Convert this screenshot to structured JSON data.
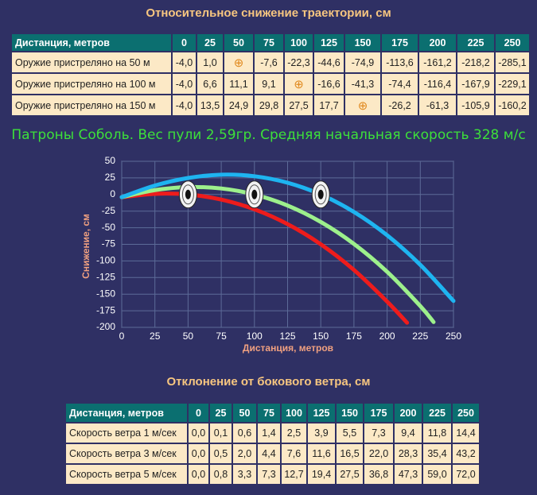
{
  "drop_table": {
    "title": "Относительное снижение траектории, см",
    "header": [
      "Дистанция, метров",
      "0",
      "25",
      "50",
      "75",
      "100",
      "125",
      "150",
      "175",
      "200",
      "225",
      "250"
    ],
    "rows": [
      [
        "Оружие пристреляно на 50 м",
        "-4,0",
        "1,0",
        "⊕",
        "-7,6",
        "-22,3",
        "-44,6",
        "-74,9",
        "-113,6",
        "-161,2",
        "-218,2",
        "-285,1"
      ],
      [
        "Оружие пристреляно на 100 м",
        "-4,0",
        "6,6",
        "11,1",
        "9,1",
        "⊕",
        "-16,6",
        "-41,3",
        "-74,4",
        "-116,4",
        "-167,9",
        "-229,1"
      ],
      [
        "Оружие пристреляно на 150 м",
        "-4,0",
        "13,5",
        "24,9",
        "29,8",
        "27,5",
        "17,7",
        "⊕",
        "-26,2",
        "-61,3",
        "-105,9",
        "-160,2"
      ]
    ]
  },
  "subtitle": "Патроны Соболь. Вес пули 2,59гр. Средняя начальная скорость 328 м/с",
  "chart_data": {
    "type": "line",
    "xlabel": "Дистанция, метров",
    "ylabel": "Снижение, см",
    "xlim": [
      0,
      250
    ],
    "xticks": [
      0,
      25,
      50,
      75,
      100,
      125,
      150,
      175,
      200,
      225,
      250
    ],
    "ylim": [
      -200,
      50
    ],
    "yticks": [
      -200,
      -175,
      -150,
      -125,
      -100,
      -75,
      -50,
      -25,
      0,
      25,
      50
    ],
    "grid": true,
    "series": [
      {
        "color": "#ee1c1c",
        "x": [
          0,
          25,
          50,
          75,
          100,
          125,
          150,
          175,
          200,
          215
        ],
        "values": [
          -4,
          1,
          0,
          -7.6,
          -22.3,
          -44.6,
          -74.9,
          -113.6,
          -161.2,
          -193
        ]
      },
      {
        "color": "#9df08c",
        "x": [
          0,
          25,
          50,
          75,
          100,
          125,
          150,
          175,
          200,
          225,
          235
        ],
        "values": [
          -4,
          6.6,
          11.1,
          9.1,
          0,
          -16.6,
          -41.3,
          -74.4,
          -116.4,
          -167.9,
          -192
        ]
      },
      {
        "color": "#1eb4f0",
        "x": [
          0,
          25,
          50,
          75,
          100,
          125,
          150,
          175,
          200,
          225,
          250
        ],
        "values": [
          -4,
          13.5,
          24.9,
          29.8,
          27.5,
          17.7,
          0,
          -26.2,
          -61.3,
          -105.9,
          -160.2
        ]
      }
    ]
  },
  "wind_table": {
    "title": "Отклонение от бокового ветра, см",
    "header": [
      "Дистанция, метров",
      "0",
      "25",
      "50",
      "75",
      "100",
      "125",
      "150",
      "175",
      "200",
      "225",
      "250"
    ],
    "rows": [
      [
        "Скорость ветра 1 м/сек",
        "0,0",
        "0,1",
        "0,6",
        "1,4",
        "2,5",
        "3,9",
        "5,5",
        "7,3",
        "9,4",
        "11,8",
        "14,4"
      ],
      [
        "Скорость ветра 3 м/сек",
        "0,0",
        "0,5",
        "2,0",
        "4,4",
        "7,6",
        "11,6",
        "16,5",
        "22,0",
        "28,3",
        "35,4",
        "43,2"
      ],
      [
        "Скорость ветра 5 м/сек",
        "0,0",
        "0,8",
        "3,3",
        "7,3",
        "12,7",
        "19,4",
        "27,5",
        "36,8",
        "47,3",
        "59,0",
        "72,0"
      ]
    ]
  }
}
